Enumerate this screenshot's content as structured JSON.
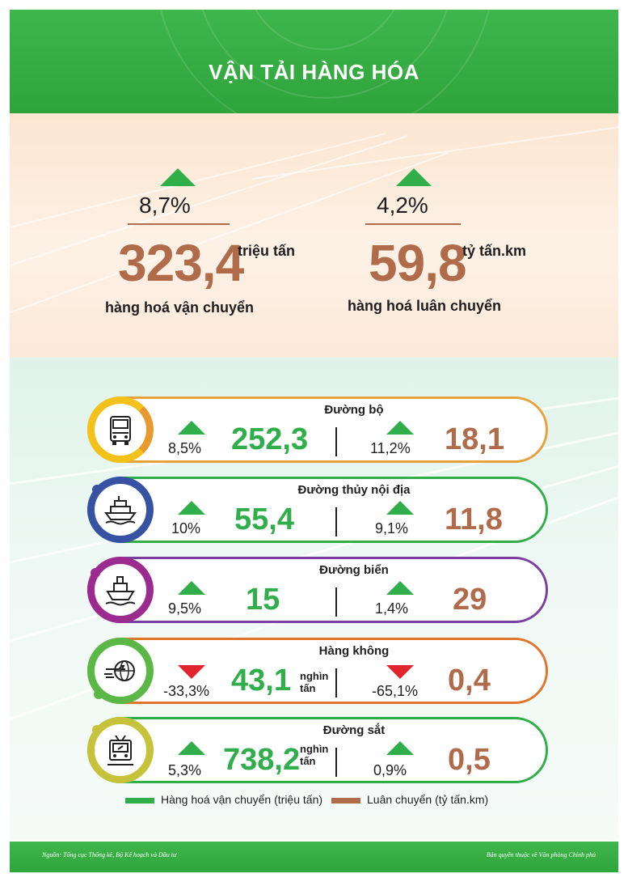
{
  "header": {
    "title": "VẬN TẢI HÀNG HÓA"
  },
  "summary": [
    {
      "change": "8,7%",
      "direction": "up",
      "value": "323,4",
      "unit": "triệu tấn",
      "label": "hàng hoá vận chuyển"
    },
    {
      "change": "4,2%",
      "direction": "up",
      "value": "59,8",
      "unit": "tỷ tấn.km",
      "label": "hàng hoá luân chuyển"
    }
  ],
  "modes": [
    {
      "name": "Đường bộ",
      "icon": "truck-icon",
      "color": "#f2c21b",
      "transport": {
        "change": "8,5%",
        "direction": "up",
        "value": "252,3",
        "unit": ""
      },
      "rotation": {
        "change": "11,2%",
        "direction": "up",
        "value": "18,1"
      }
    },
    {
      "name": "Đường thủy nội địa",
      "icon": "ferry-icon",
      "color": "#3852a3",
      "transport": {
        "change": "10%",
        "direction": "up",
        "value": "55,4",
        "unit": ""
      },
      "rotation": {
        "change": "9,1%",
        "direction": "up",
        "value": "11,8"
      }
    },
    {
      "name": "Đường biển",
      "icon": "ship-icon",
      "color": "#9c2b8f",
      "transport": {
        "change": "9,5%",
        "direction": "up",
        "value": "15",
        "unit": ""
      },
      "rotation": {
        "change": "1,4%",
        "direction": "up",
        "value": "29"
      }
    },
    {
      "name": "Hàng không",
      "icon": "plane-globe-icon",
      "color": "#5cb846",
      "transport": {
        "change": "-33,3%",
        "direction": "down",
        "value": "43,1",
        "unit": "nghìn tấn"
      },
      "rotation": {
        "change": "-65,1%",
        "direction": "down",
        "value": "0,4"
      }
    },
    {
      "name": "Đường sắt",
      "icon": "train-icon",
      "color": "#c6c23a",
      "transport": {
        "change": "5,3%",
        "direction": "up",
        "value": "738,2",
        "unit": "nghìn tấn"
      },
      "rotation": {
        "change": "0,9%",
        "direction": "up",
        "value": "0,5"
      }
    }
  ],
  "legend": {
    "transport": {
      "label": "Hàng hoá vận chuyển (triệu tấn)",
      "color": "#2fae4a"
    },
    "rotation": {
      "label": "Luân chuyển (tỷ tấn.km)",
      "color": "#b06b4b"
    }
  },
  "footer": {
    "source": "Nguồn: Tổng cục Thống kê, Bộ Kế hoạch và Đầu tư",
    "copyright": "Bản quyền thuộc về Văn phòng Chính phủ"
  },
  "colors": {
    "green": "#2fae4a",
    "brown": "#b06b4b",
    "red": "#e2242c",
    "header": "#3fb64c"
  }
}
